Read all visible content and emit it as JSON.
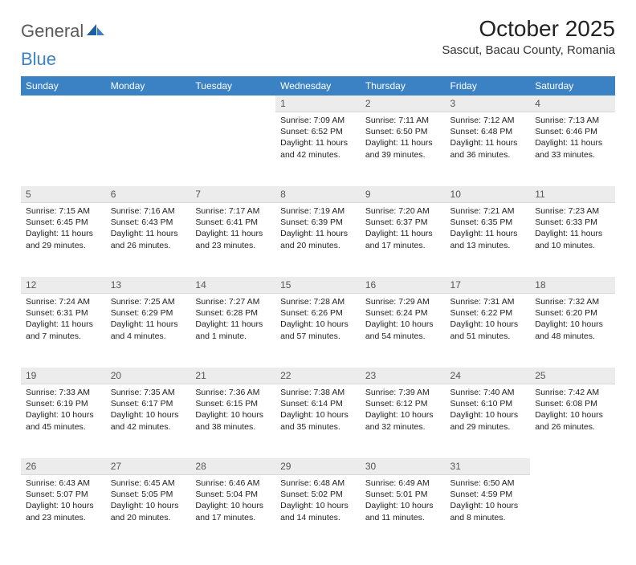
{
  "logo": {
    "text1": "General",
    "text2": "Blue"
  },
  "title": "October 2025",
  "location": "Sascut, Bacau County, Romania",
  "header_bg": "#3b82c4",
  "header_text_color": "#ffffff",
  "daynum_bg": "#ececec",
  "days": [
    "Sunday",
    "Monday",
    "Tuesday",
    "Wednesday",
    "Thursday",
    "Friday",
    "Saturday"
  ],
  "weeks": [
    [
      null,
      null,
      null,
      {
        "n": "1",
        "sr": "7:09 AM",
        "ss": "6:52 PM",
        "dl": "11 hours and 42 minutes."
      },
      {
        "n": "2",
        "sr": "7:11 AM",
        "ss": "6:50 PM",
        "dl": "11 hours and 39 minutes."
      },
      {
        "n": "3",
        "sr": "7:12 AM",
        "ss": "6:48 PM",
        "dl": "11 hours and 36 minutes."
      },
      {
        "n": "4",
        "sr": "7:13 AM",
        "ss": "6:46 PM",
        "dl": "11 hours and 33 minutes."
      }
    ],
    [
      {
        "n": "5",
        "sr": "7:15 AM",
        "ss": "6:45 PM",
        "dl": "11 hours and 29 minutes."
      },
      {
        "n": "6",
        "sr": "7:16 AM",
        "ss": "6:43 PM",
        "dl": "11 hours and 26 minutes."
      },
      {
        "n": "7",
        "sr": "7:17 AM",
        "ss": "6:41 PM",
        "dl": "11 hours and 23 minutes."
      },
      {
        "n": "8",
        "sr": "7:19 AM",
        "ss": "6:39 PM",
        "dl": "11 hours and 20 minutes."
      },
      {
        "n": "9",
        "sr": "7:20 AM",
        "ss": "6:37 PM",
        "dl": "11 hours and 17 minutes."
      },
      {
        "n": "10",
        "sr": "7:21 AM",
        "ss": "6:35 PM",
        "dl": "11 hours and 13 minutes."
      },
      {
        "n": "11",
        "sr": "7:23 AM",
        "ss": "6:33 PM",
        "dl": "11 hours and 10 minutes."
      }
    ],
    [
      {
        "n": "12",
        "sr": "7:24 AM",
        "ss": "6:31 PM",
        "dl": "11 hours and 7 minutes."
      },
      {
        "n": "13",
        "sr": "7:25 AM",
        "ss": "6:29 PM",
        "dl": "11 hours and 4 minutes."
      },
      {
        "n": "14",
        "sr": "7:27 AM",
        "ss": "6:28 PM",
        "dl": "11 hours and 1 minute."
      },
      {
        "n": "15",
        "sr": "7:28 AM",
        "ss": "6:26 PM",
        "dl": "10 hours and 57 minutes."
      },
      {
        "n": "16",
        "sr": "7:29 AM",
        "ss": "6:24 PM",
        "dl": "10 hours and 54 minutes."
      },
      {
        "n": "17",
        "sr": "7:31 AM",
        "ss": "6:22 PM",
        "dl": "10 hours and 51 minutes."
      },
      {
        "n": "18",
        "sr": "7:32 AM",
        "ss": "6:20 PM",
        "dl": "10 hours and 48 minutes."
      }
    ],
    [
      {
        "n": "19",
        "sr": "7:33 AM",
        "ss": "6:19 PM",
        "dl": "10 hours and 45 minutes."
      },
      {
        "n": "20",
        "sr": "7:35 AM",
        "ss": "6:17 PM",
        "dl": "10 hours and 42 minutes."
      },
      {
        "n": "21",
        "sr": "7:36 AM",
        "ss": "6:15 PM",
        "dl": "10 hours and 38 minutes."
      },
      {
        "n": "22",
        "sr": "7:38 AM",
        "ss": "6:14 PM",
        "dl": "10 hours and 35 minutes."
      },
      {
        "n": "23",
        "sr": "7:39 AM",
        "ss": "6:12 PM",
        "dl": "10 hours and 32 minutes."
      },
      {
        "n": "24",
        "sr": "7:40 AM",
        "ss": "6:10 PM",
        "dl": "10 hours and 29 minutes."
      },
      {
        "n": "25",
        "sr": "7:42 AM",
        "ss": "6:08 PM",
        "dl": "10 hours and 26 minutes."
      }
    ],
    [
      {
        "n": "26",
        "sr": "6:43 AM",
        "ss": "5:07 PM",
        "dl": "10 hours and 23 minutes."
      },
      {
        "n": "27",
        "sr": "6:45 AM",
        "ss": "5:05 PM",
        "dl": "10 hours and 20 minutes."
      },
      {
        "n": "28",
        "sr": "6:46 AM",
        "ss": "5:04 PM",
        "dl": "10 hours and 17 minutes."
      },
      {
        "n": "29",
        "sr": "6:48 AM",
        "ss": "5:02 PM",
        "dl": "10 hours and 14 minutes."
      },
      {
        "n": "30",
        "sr": "6:49 AM",
        "ss": "5:01 PM",
        "dl": "10 hours and 11 minutes."
      },
      {
        "n": "31",
        "sr": "6:50 AM",
        "ss": "4:59 PM",
        "dl": "10 hours and 8 minutes."
      },
      null
    ]
  ],
  "labels": {
    "sunrise": "Sunrise:",
    "sunset": "Sunset:",
    "daylight": "Daylight:"
  }
}
